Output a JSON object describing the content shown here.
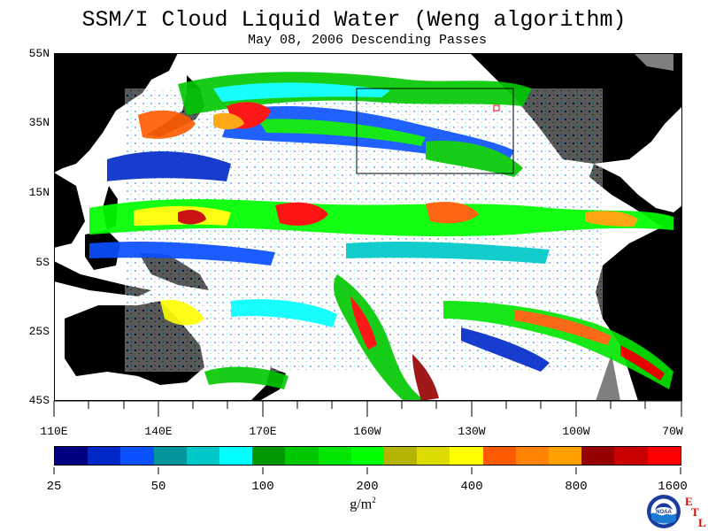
{
  "title": "SSM/I Cloud Liquid Water (Weng algorithm)",
  "subtitle": "May 08, 2006  Descending Passes",
  "map": {
    "lat_labels": [
      "55N",
      "35N",
      "15N",
      "5S",
      "25S",
      "45S"
    ],
    "lon_labels": [
      "110E",
      "140E",
      "170E",
      "160W",
      "130W",
      "100W",
      "70W"
    ],
    "land_color": "#000000",
    "missing_color": "#7f7f7f",
    "clear_color": "#ffffff"
  },
  "legend": {
    "colors": [
      "#000080",
      "#0028c8",
      "#0a50ff",
      "#00969b",
      "#00c8c8",
      "#00ffff",
      "#009600",
      "#00c800",
      "#00e600",
      "#00ff00",
      "#b4b400",
      "#dcdc00",
      "#ffff00",
      "#ff5a00",
      "#ff8200",
      "#ffa000",
      "#960000",
      "#c80000",
      "#ff0000"
    ],
    "labels": [
      "25",
      "50",
      "100",
      "200",
      "400",
      "800",
      "1600"
    ],
    "units": "g/m",
    "units_sup": "2"
  },
  "credits": {
    "logo_text": "NOAA",
    "etl_letters": [
      "E",
      "T",
      "L"
    ]
  }
}
